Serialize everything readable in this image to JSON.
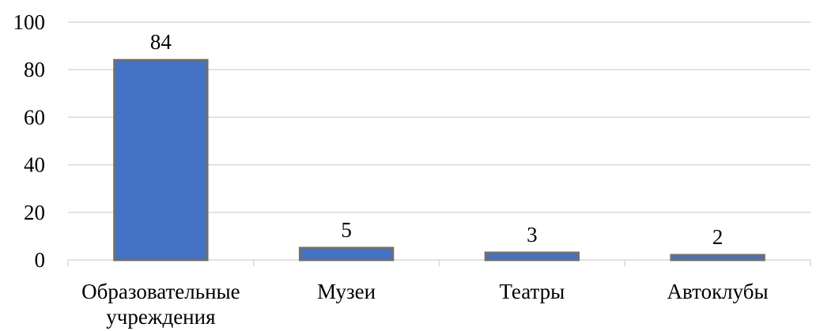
{
  "chart_data": {
    "type": "bar",
    "categories": [
      [
        "Образовательные",
        "учреждения"
      ],
      [
        "Музеи"
      ],
      [
        "Театры"
      ],
      [
        "Автоклубы"
      ]
    ],
    "values": [
      84,
      5,
      3,
      2
    ],
    "ylim": [
      0,
      100
    ],
    "yticks": [
      0,
      20,
      40,
      60,
      80,
      100
    ],
    "grid": true,
    "bar_color": "#4472c4",
    "bar_edge_color": "#6f6f6f"
  }
}
